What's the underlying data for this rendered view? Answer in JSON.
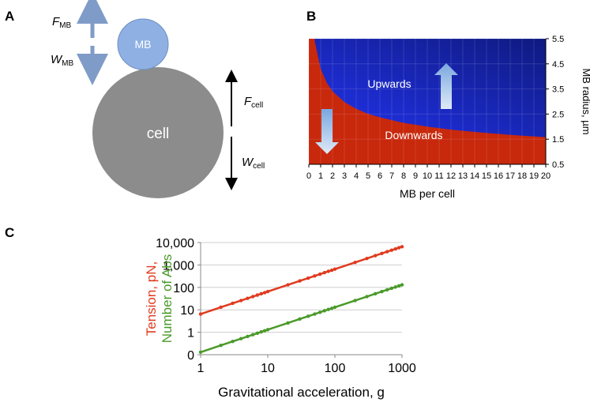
{
  "panels": {
    "a": {
      "letter": "A",
      "force_mb": {
        "main": "F",
        "sub": "MB"
      },
      "weight_mb": {
        "main": "W",
        "sub": "MB"
      },
      "mb_label": "MB",
      "cell_label": "cell",
      "force_cell": {
        "main": "F",
        "sub": "cell"
      },
      "weight_cell": {
        "main": "W",
        "sub": "cell"
      }
    },
    "b": {
      "letter": "B"
    },
    "c": {
      "letter": "C"
    }
  },
  "chart_data": [
    {
      "type": "region",
      "xlabel": "MB per cell",
      "ylabel": "MB radius, µm",
      "x": [
        0.5,
        1,
        1.5,
        2,
        3,
        4,
        5,
        6,
        8,
        10,
        12,
        14,
        16,
        18,
        20
      ],
      "values": [
        5.4,
        4.3,
        3.76,
        3.41,
        2.98,
        2.71,
        2.51,
        2.37,
        2.15,
        2.0,
        1.88,
        1.79,
        1.71,
        1.64,
        1.58
      ],
      "series": [
        {
          "name": "Upwards",
          "color": "#1f2fd6"
        },
        {
          "name": "Downwards",
          "color": "#c8280c"
        }
      ],
      "xlim": [
        0,
        20
      ],
      "xticks": [
        0,
        1,
        2,
        3,
        4,
        5,
        6,
        7,
        8,
        9,
        10,
        11,
        12,
        13,
        14,
        15,
        16,
        17,
        18,
        19,
        20
      ],
      "ylim": [
        0.5,
        5.5
      ],
      "yticks": [
        0.5,
        1.5,
        2.5,
        3.5,
        4.5,
        5.5
      ],
      "grid": true
    },
    {
      "type": "line",
      "log_x": true,
      "log_y": true,
      "xlabel": "Gravitational acceleration, g",
      "ylabel": [
        "Tension, pN,",
        "Number of Abs"
      ],
      "x": [
        1,
        2,
        3,
        4,
        5,
        6,
        7,
        8,
        9,
        10,
        20,
        30,
        40,
        50,
        60,
        70,
        80,
        90,
        100,
        200,
        300,
        400,
        500,
        600,
        700,
        800,
        900,
        1000
      ],
      "series": [
        {
          "name": "Tension, pN,",
          "color": "#e03a1e",
          "values": [
            6.5,
            13,
            19.5,
            26,
            32.5,
            39,
            45.5,
            52,
            58.5,
            65,
            130,
            195,
            260,
            325,
            390,
            455,
            520,
            585,
            650,
            1300,
            1950,
            2600,
            3250,
            3900,
            4550,
            5200,
            5850,
            6500
          ]
        },
        {
          "name": "Number of Abs",
          "color": "#4a9a2a",
          "values": [
            0.13,
            0.26,
            0.39,
            0.52,
            0.65,
            0.78,
            0.91,
            1.04,
            1.17,
            1.3,
            2.6,
            3.9,
            5.2,
            6.5,
            7.8,
            9.1,
            10.4,
            11.7,
            13,
            26,
            39,
            52,
            65,
            78,
            91,
            104,
            117,
            130
          ]
        }
      ],
      "xlim": [
        1,
        1000
      ],
      "xticks": [
        1,
        10,
        100,
        1000
      ],
      "ylim": [
        0.1,
        10000
      ],
      "yticks": [
        {
          "value": 0.1,
          "label": "0"
        },
        1,
        10,
        100,
        {
          "value": 1000,
          "label": "1,000"
        },
        {
          "value": 10000,
          "label": "10,000"
        }
      ],
      "grid": true
    }
  ]
}
